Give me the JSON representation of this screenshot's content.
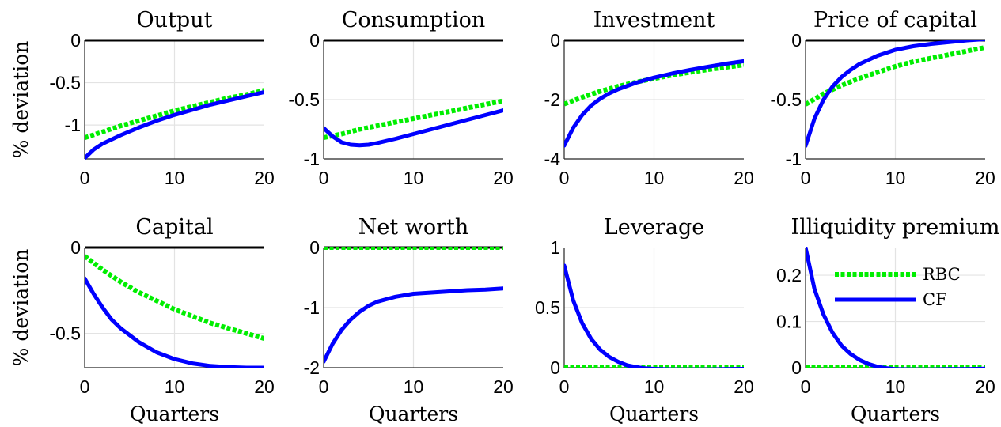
{
  "chart_data": [
    {
      "type": "line",
      "title": "Output",
      "ylabel": "% deviation",
      "xlabel": "",
      "xlim": [
        0,
        20
      ],
      "ylim": [
        -1.4,
        0
      ],
      "xticks": [
        0,
        10,
        20
      ],
      "xtick_labels": [
        "0",
        "10",
        "20"
      ],
      "yticks": [
        0,
        -0.5,
        -1
      ],
      "ytick_labels": [
        "0",
        "-0.5",
        "-1"
      ],
      "grid": true,
      "series": [
        {
          "color": "#00ee00",
          "style": "dotted",
          "x": [
            0,
            2,
            4,
            6,
            8,
            10,
            12,
            14,
            16,
            18,
            20
          ],
          "y": [
            -1.15,
            -1.08,
            -1.01,
            -0.95,
            -0.89,
            -0.83,
            -0.78,
            -0.73,
            -0.68,
            -0.64,
            -0.59
          ]
        },
        {
          "color": "#0000ff",
          "style": "solid",
          "x": [
            0,
            1,
            2,
            4,
            6,
            8,
            10,
            12,
            14,
            16,
            18,
            20
          ],
          "y": [
            -1.39,
            -1.29,
            -1.22,
            -1.12,
            -1.03,
            -0.95,
            -0.88,
            -0.82,
            -0.76,
            -0.71,
            -0.66,
            -0.61
          ]
        }
      ]
    },
    {
      "type": "line",
      "title": "Consumption",
      "ylabel": "",
      "xlabel": "",
      "xlim": [
        0,
        20
      ],
      "ylim": [
        -1,
        0
      ],
      "xticks": [
        0,
        10,
        20
      ],
      "xtick_labels": [
        "0",
        "10",
        "20"
      ],
      "yticks": [
        0,
        -0.5,
        -1
      ],
      "ytick_labels": [
        "0",
        "-0.5",
        "-1"
      ],
      "grid": true,
      "series": [
        {
          "color": "#00ee00",
          "style": "dotted",
          "x": [
            0,
            2,
            4,
            6,
            8,
            10,
            12,
            14,
            16,
            18,
            20
          ],
          "y": [
            -0.82,
            -0.79,
            -0.75,
            -0.72,
            -0.69,
            -0.66,
            -0.63,
            -0.6,
            -0.57,
            -0.54,
            -0.51
          ]
        },
        {
          "color": "#0000ff",
          "style": "solid",
          "x": [
            0,
            1,
            2,
            3,
            4,
            5,
            6,
            8,
            10,
            12,
            14,
            16,
            18,
            20
          ],
          "y": [
            -0.74,
            -0.81,
            -0.86,
            -0.88,
            -0.885,
            -0.88,
            -0.865,
            -0.83,
            -0.79,
            -0.75,
            -0.71,
            -0.67,
            -0.63,
            -0.59
          ]
        }
      ]
    },
    {
      "type": "line",
      "title": "Investment",
      "ylabel": "",
      "xlabel": "",
      "xlim": [
        0,
        20
      ],
      "ylim": [
        -4,
        0
      ],
      "xticks": [
        0,
        10,
        20
      ],
      "xtick_labels": [
        "0",
        "10",
        "20"
      ],
      "yticks": [
        0,
        -2,
        -4
      ],
      "ytick_labels": [
        "0",
        "-2",
        "-4"
      ],
      "grid": true,
      "series": [
        {
          "color": "#00ee00",
          "style": "dotted",
          "x": [
            0,
            2,
            4,
            6,
            8,
            10,
            12,
            14,
            16,
            18,
            20
          ],
          "y": [
            -2.15,
            -1.92,
            -1.72,
            -1.55,
            -1.41,
            -1.29,
            -1.18,
            -1.08,
            -0.99,
            -0.91,
            -0.83
          ]
        },
        {
          "color": "#0000ff",
          "style": "solid",
          "x": [
            0,
            1,
            2,
            3,
            4,
            5,
            6,
            8,
            10,
            12,
            14,
            16,
            18,
            20
          ],
          "y": [
            -3.55,
            -2.95,
            -2.52,
            -2.2,
            -1.97,
            -1.79,
            -1.65,
            -1.43,
            -1.26,
            -1.12,
            -1.0,
            -0.89,
            -0.79,
            -0.7
          ]
        }
      ]
    },
    {
      "type": "line",
      "title": "Price of capital",
      "ylabel": "",
      "xlabel": "",
      "xlim": [
        0,
        20
      ],
      "ylim": [
        -1,
        0
      ],
      "xticks": [
        0,
        10,
        20
      ],
      "xtick_labels": [
        "0",
        "10",
        "20"
      ],
      "yticks": [
        0,
        -0.5,
        -1
      ],
      "ytick_labels": [
        "0",
        "-0.5",
        "-1"
      ],
      "grid": true,
      "series": [
        {
          "color": "#00ee00",
          "style": "dotted",
          "x": [
            0,
            2,
            4,
            6,
            8,
            10,
            12,
            14,
            16,
            18,
            20
          ],
          "y": [
            -0.54,
            -0.45,
            -0.38,
            -0.32,
            -0.27,
            -0.22,
            -0.18,
            -0.15,
            -0.12,
            -0.09,
            -0.06
          ]
        },
        {
          "color": "#0000ff",
          "style": "solid",
          "x": [
            0,
            1,
            2,
            3,
            4,
            5,
            6,
            8,
            10,
            12,
            14,
            16,
            18,
            20
          ],
          "y": [
            -0.89,
            -0.66,
            -0.5,
            -0.39,
            -0.31,
            -0.25,
            -0.2,
            -0.13,
            -0.08,
            -0.05,
            -0.03,
            -0.015,
            0.0,
            0.01
          ]
        }
      ]
    },
    {
      "type": "line",
      "title": "Capital",
      "ylabel": "% deviation",
      "xlabel": "Quarters",
      "xlim": [
        0,
        20
      ],
      "ylim": [
        -0.7,
        0
      ],
      "xticks": [
        0,
        10,
        20
      ],
      "xtick_labels": [
        "0",
        "10",
        "20"
      ],
      "yticks": [
        0,
        -0.5
      ],
      "ytick_labels": [
        "0",
        "-0.5"
      ],
      "grid": true,
      "series": [
        {
          "color": "#00ee00",
          "style": "dotted",
          "x": [
            0,
            2,
            4,
            6,
            8,
            10,
            12,
            14,
            16,
            18,
            20
          ],
          "y": [
            -0.05,
            -0.13,
            -0.2,
            -0.26,
            -0.31,
            -0.36,
            -0.4,
            -0.44,
            -0.47,
            -0.5,
            -0.53
          ]
        },
        {
          "color": "#0000ff",
          "style": "solid",
          "x": [
            0,
            1,
            2,
            3,
            4,
            6,
            8,
            10,
            12,
            14,
            16,
            18,
            20
          ],
          "y": [
            -0.18,
            -0.27,
            -0.35,
            -0.42,
            -0.47,
            -0.55,
            -0.61,
            -0.65,
            -0.675,
            -0.69,
            -0.697,
            -0.7,
            -0.7
          ]
        }
      ]
    },
    {
      "type": "line",
      "title": "Net worth",
      "ylabel": "",
      "xlabel": "Quarters",
      "xlim": [
        0,
        20
      ],
      "ylim": [
        -2,
        0
      ],
      "xticks": [
        0,
        10,
        20
      ],
      "xtick_labels": [
        "0",
        "10",
        "20"
      ],
      "yticks": [
        0,
        -1,
        -2
      ],
      "ytick_labels": [
        "0",
        "-1",
        "-2"
      ],
      "grid": true,
      "series": [
        {
          "color": "#00ee00",
          "style": "dotted",
          "x": [
            0,
            20
          ],
          "y": [
            0,
            0
          ]
        },
        {
          "color": "#0000ff",
          "style": "solid",
          "x": [
            0,
            1,
            2,
            3,
            4,
            5,
            6,
            8,
            10,
            12,
            14,
            16,
            18,
            20
          ],
          "y": [
            -1.9,
            -1.6,
            -1.37,
            -1.2,
            -1.07,
            -0.97,
            -0.9,
            -0.82,
            -0.77,
            -0.75,
            -0.73,
            -0.71,
            -0.7,
            -0.68
          ]
        }
      ]
    },
    {
      "type": "line",
      "title": "Leverage",
      "ylabel": "",
      "xlabel": "Quarters",
      "xlim": [
        0,
        20
      ],
      "ylim": [
        0,
        1
      ],
      "xticks": [
        0,
        10,
        20
      ],
      "xtick_labels": [
        "0",
        "10",
        "20"
      ],
      "yticks": [
        1,
        0.5,
        0
      ],
      "ytick_labels": [
        "1",
        "0.5",
        "0"
      ],
      "grid": true,
      "series": [
        {
          "color": "#00ee00",
          "style": "dotted",
          "x": [
            0,
            20
          ],
          "y": [
            0,
            0
          ]
        },
        {
          "color": "#0000ff",
          "style": "solid",
          "x": [
            0,
            1,
            2,
            3,
            4,
            5,
            6,
            7,
            8,
            9,
            10,
            12,
            14,
            16,
            18,
            20
          ],
          "y": [
            0.85,
            0.56,
            0.37,
            0.24,
            0.15,
            0.09,
            0.05,
            0.02,
            0.005,
            -0.005,
            -0.01,
            -0.015,
            -0.015,
            -0.015,
            -0.012,
            -0.01
          ]
        }
      ]
    },
    {
      "type": "line",
      "title": "Illiquidity premium",
      "ylabel": "",
      "xlabel": "Quarters",
      "xlim": [
        0,
        20
      ],
      "ylim": [
        0,
        0.26
      ],
      "xticks": [
        0,
        10,
        20
      ],
      "xtick_labels": [
        "0",
        "10",
        "20"
      ],
      "yticks": [
        0.2,
        0.1,
        0
      ],
      "ytick_labels": [
        "0.2",
        "0.1",
        "0"
      ],
      "grid": true,
      "legend": {
        "position": "top-right",
        "entries": [
          "RBC",
          "CF"
        ]
      },
      "series": [
        {
          "name": "RBC",
          "color": "#00ee00",
          "style": "dotted",
          "x": [
            0,
            20
          ],
          "y": [
            0,
            0
          ]
        },
        {
          "name": "CF",
          "color": "#0000ff",
          "style": "solid",
          "x": [
            0,
            1,
            2,
            3,
            4,
            5,
            6,
            7,
            8,
            9,
            10,
            12,
            14,
            16,
            18,
            20
          ],
          "y": [
            0.26,
            0.17,
            0.115,
            0.076,
            0.048,
            0.03,
            0.017,
            0.008,
            0.002,
            -0.001,
            -0.003,
            -0.004,
            -0.004,
            -0.003,
            -0.003,
            -0.002
          ]
        }
      ]
    }
  ]
}
